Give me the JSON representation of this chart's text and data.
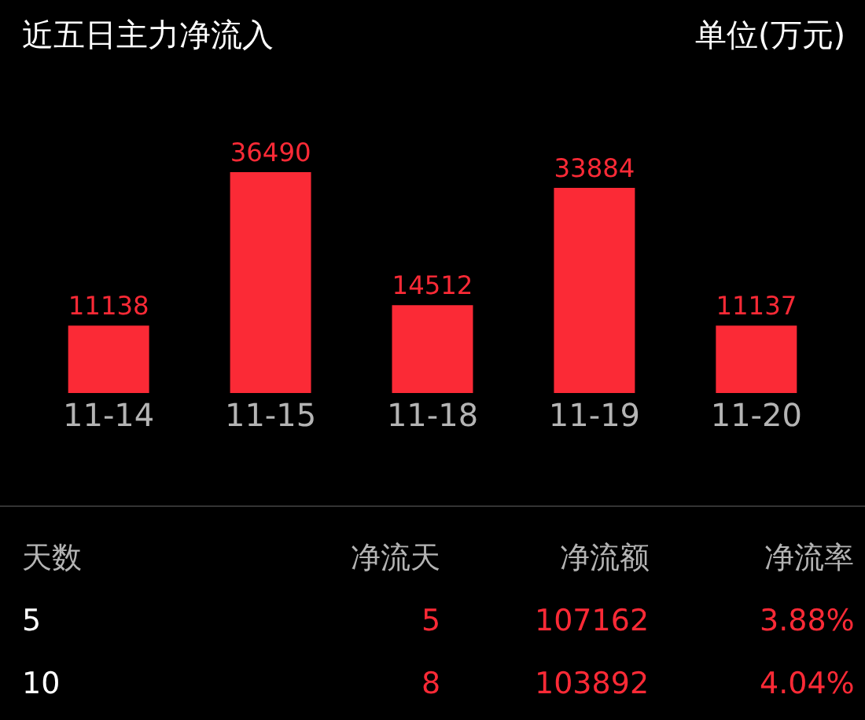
{
  "chart_data": {
    "type": "bar",
    "title": "近五日主力净流入",
    "subtitle": "单位(万元)",
    "categories": [
      "11-14",
      "11-15",
      "11-18",
      "11-19",
      "11-20"
    ],
    "values": [
      11138,
      36490,
      14512,
      33884,
      11137
    ],
    "color": "#fb2a36",
    "data_labels": true,
    "grid": false,
    "legend": false,
    "annotations": [
      "天数",
      "净流天",
      "净流额",
      "净流率",
      "5",
      "5",
      "107162",
      "3.88%",
      "10",
      "8",
      "103892",
      "4.04%"
    ]
  }
}
